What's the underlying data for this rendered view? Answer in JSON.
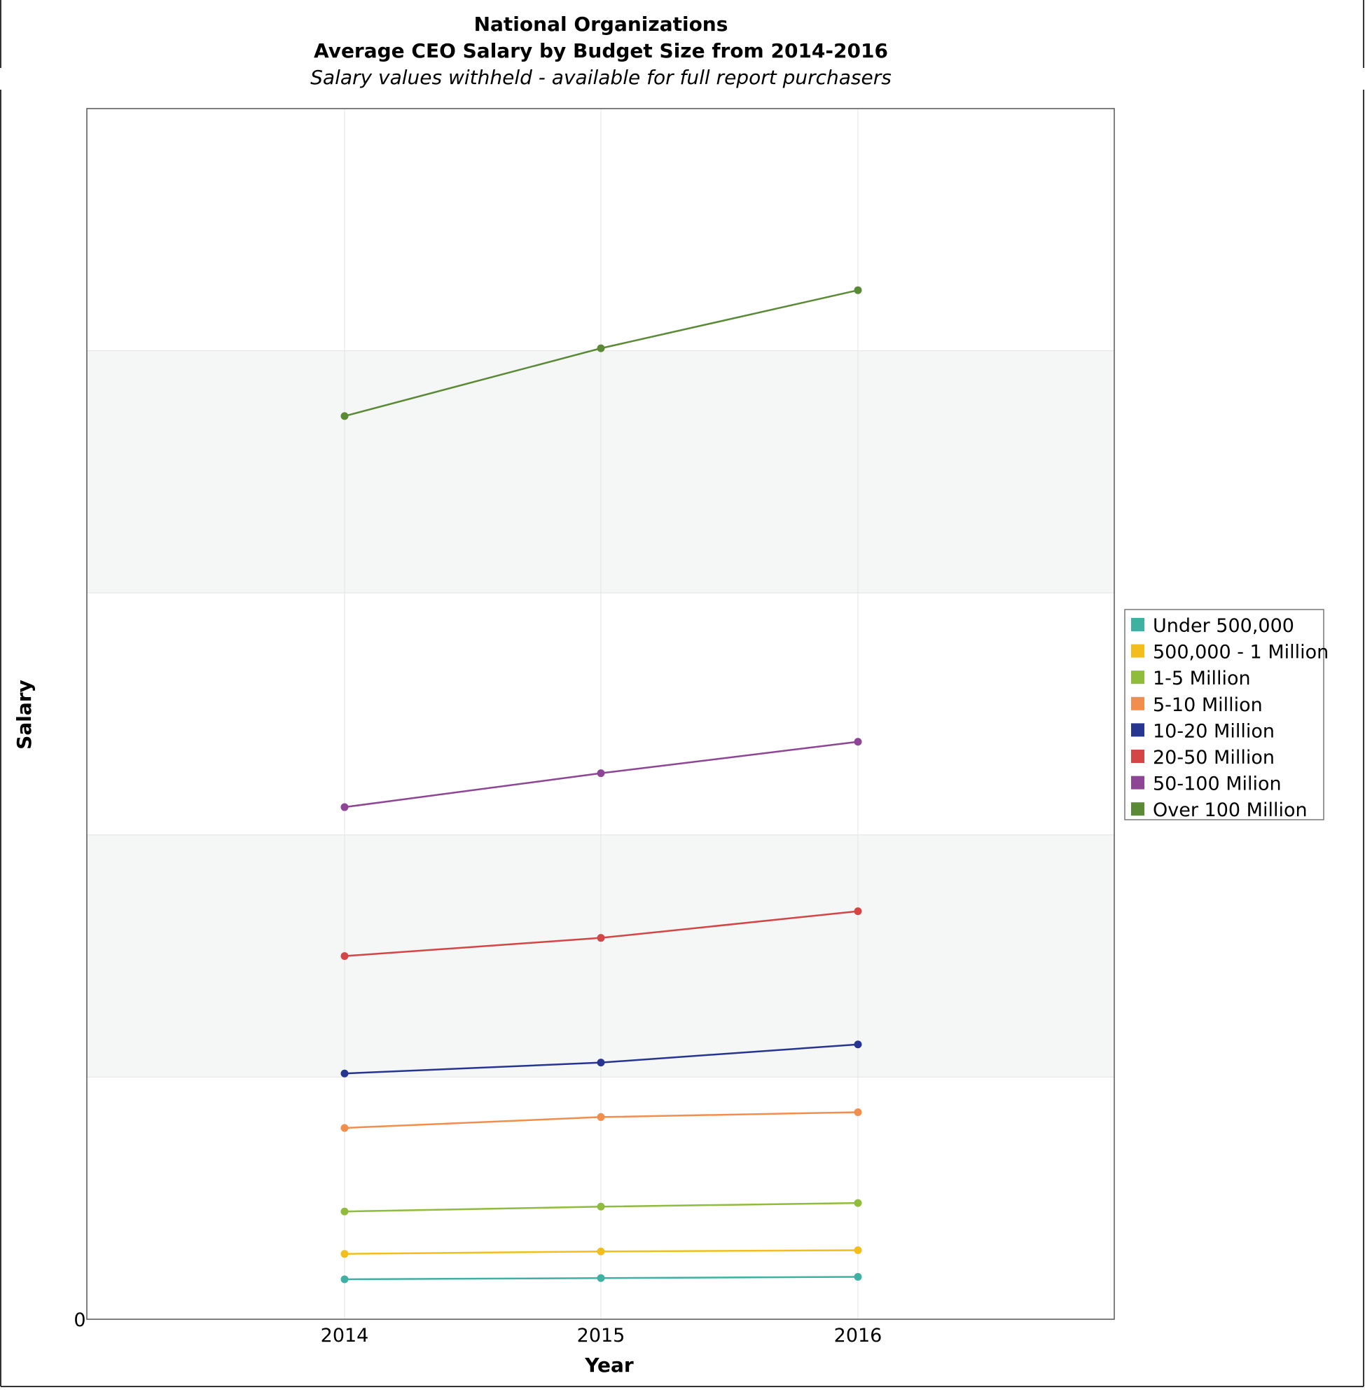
{
  "chart_data": {
    "type": "line",
    "title": "National Organizations",
    "title_line2": "Average CEO Salary by Budget Size from 2014-2016",
    "subtitle": "Salary values withheld - available for full report purchasers",
    "xlabel": "Year",
    "ylabel": "Salary",
    "x": [
      "2014",
      "2015",
      "2016"
    ],
    "ylim": [
      0,
      100
    ],
    "y_tick_labels": [
      "0"
    ],
    "y_values_note_withheld": true,
    "grid": true,
    "legend_position": "right",
    "series": [
      {
        "name": "Under 500,000",
        "color": "#3fb1a3",
        "values": [
          3.3,
          3.4,
          3.5
        ]
      },
      {
        "name": "500,000 - 1 Million",
        "color": "#f2bd1d",
        "values": [
          5.4,
          5.6,
          5.7
        ]
      },
      {
        "name": "1-5 Million",
        "color": "#8fbc3b",
        "values": [
          8.9,
          9.3,
          9.6
        ]
      },
      {
        "name": "5-10 Million",
        "color": "#f28e4c",
        "values": [
          15.8,
          16.7,
          17.1
        ]
      },
      {
        "name": "10-20 Million",
        "color": "#273592",
        "values": [
          20.3,
          21.2,
          22.7
        ]
      },
      {
        "name": "20-50 Million",
        "color": "#d44545",
        "values": [
          30.0,
          31.5,
          33.7
        ]
      },
      {
        "name": "50-100 Milion",
        "color": "#8e4596",
        "values": [
          42.3,
          45.1,
          47.7
        ]
      },
      {
        "name": "Over 100 Million",
        "color": "#5a8a36",
        "values": [
          74.6,
          80.2,
          85.0
        ]
      }
    ]
  }
}
